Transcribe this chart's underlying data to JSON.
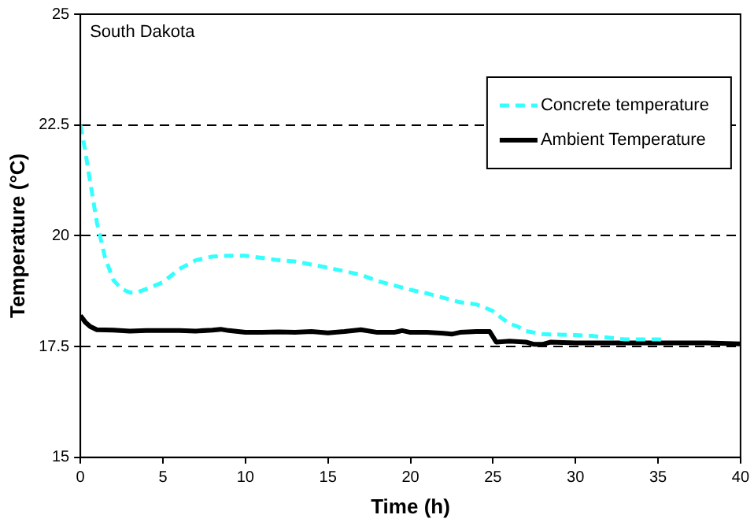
{
  "chart_data": {
    "type": "line",
    "xlabel": "Time (h)",
    "ylabel": "Temperature (°C)",
    "annotations": [
      "South Dakota"
    ],
    "xlim": [
      0,
      40
    ],
    "xticks": [
      0,
      5,
      10,
      15,
      20,
      25,
      30,
      35,
      40
    ],
    "ylim": [
      15,
      25
    ],
    "yticks": [
      15,
      17.5,
      20,
      22.5,
      25
    ],
    "grid": "y",
    "legend": "top right",
    "marker": "none",
    "series": [
      {
        "name": "Concrete temperature",
        "color": "#33ffff",
        "line_style": "dashed",
        "x": [
          0,
          0.3,
          0.6,
          1,
          1.5,
          2,
          2.5,
          3,
          3.5,
          4,
          5,
          6,
          7,
          8,
          9,
          10,
          11,
          12,
          13,
          14,
          15,
          16,
          17,
          18,
          19,
          20,
          21,
          22,
          23,
          24,
          24.5,
          25,
          25.5,
          26,
          26.5,
          27,
          28,
          29,
          30,
          31,
          32,
          33,
          34,
          35,
          35.5
        ],
        "values": [
          22.5,
          21.9,
          21.2,
          20.3,
          19.5,
          19.0,
          18.8,
          18.72,
          18.73,
          18.8,
          18.95,
          19.25,
          19.45,
          19.53,
          19.55,
          19.55,
          19.5,
          19.45,
          19.42,
          19.35,
          19.28,
          19.2,
          19.12,
          18.98,
          18.88,
          18.78,
          18.7,
          18.6,
          18.5,
          18.45,
          18.38,
          18.3,
          18.15,
          18.02,
          17.95,
          17.85,
          17.78,
          17.77,
          17.76,
          17.74,
          17.7,
          17.66,
          17.66,
          17.66,
          17.65
        ]
      },
      {
        "name": "Ambient Temperature",
        "color": "#000000",
        "line_style": "solid",
        "x": [
          0,
          0.3,
          0.6,
          1,
          2,
          3,
          4,
          5,
          6,
          7,
          8,
          8.5,
          9,
          10,
          11,
          12,
          13,
          14,
          15,
          16,
          17,
          18,
          19,
          19.5,
          20,
          21,
          22,
          22.5,
          23,
          24,
          24.8,
          25.2,
          26,
          27,
          27.5,
          28,
          28.5,
          30,
          32,
          34,
          36,
          38,
          40
        ],
        "values": [
          18.2,
          18.05,
          17.95,
          17.88,
          17.87,
          17.85,
          17.86,
          17.86,
          17.86,
          17.85,
          17.87,
          17.89,
          17.86,
          17.82,
          17.82,
          17.83,
          17.82,
          17.84,
          17.81,
          17.84,
          17.88,
          17.82,
          17.82,
          17.86,
          17.82,
          17.82,
          17.8,
          17.78,
          17.82,
          17.84,
          17.84,
          17.6,
          17.62,
          17.6,
          17.55,
          17.55,
          17.6,
          17.58,
          17.58,
          17.58,
          17.58,
          17.58,
          17.56
        ]
      }
    ]
  }
}
